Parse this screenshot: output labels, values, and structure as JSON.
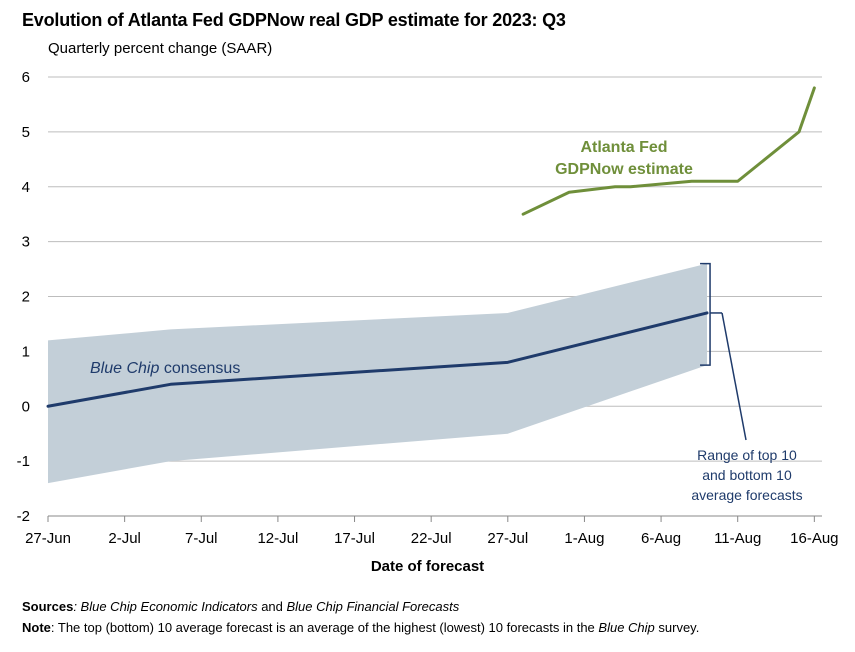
{
  "title": "Evolution of Atlanta Fed GDPNow real GDP estimate for 2023: Q3",
  "subtitle": "Quarterly percent change (SAAR)",
  "chart_data": {
    "type": "line",
    "title": "Evolution of Atlanta Fed GDPNow real GDP estimate for 2023: Q3",
    "ylabel": "Quarterly percent change (SAAR)",
    "xlabel": "Date of forecast",
    "ylim": [
      -2,
      6
    ],
    "yticks": [
      6,
      5,
      4,
      3,
      2,
      1,
      0,
      -1,
      -2
    ],
    "xticks": [
      "27-Jun",
      "2-Jul",
      "7-Jul",
      "12-Jul",
      "17-Jul",
      "22-Jul",
      "27-Jul",
      "1-Aug",
      "6-Aug",
      "11-Aug",
      "16-Aug"
    ],
    "grid": "horizontal",
    "series": [
      {
        "name": "Atlanta Fed GDPNow estimate",
        "color": "#6f8f3a",
        "points": [
          {
            "x": "28-Jul",
            "y": 3.5
          },
          {
            "x": "31-Jul",
            "y": 3.9
          },
          {
            "x": "3-Aug",
            "y": 4.0
          },
          {
            "x": "4-Aug",
            "y": 4.0
          },
          {
            "x": "8-Aug",
            "y": 4.1
          },
          {
            "x": "11-Aug",
            "y": 4.1
          },
          {
            "x": "15-Aug",
            "y": 5.0
          },
          {
            "x": "16-Aug",
            "y": 5.8
          }
        ]
      },
      {
        "name": "Blue Chip consensus",
        "color": "#1f3b6b",
        "points": [
          {
            "x": "27-Jun",
            "y": 0.0
          },
          {
            "x": "5-Jul",
            "y": 0.4
          },
          {
            "x": "27-Jul",
            "y": 0.8
          },
          {
            "x": "9-Aug",
            "y": 1.7
          }
        ]
      },
      {
        "name": "Range of top 10 and bottom 10 average forecasts",
        "type": "area",
        "color": "#c3cfd8",
        "points": [
          {
            "x": "27-Jun",
            "low": -1.4,
            "high": 1.2
          },
          {
            "x": "5-Jul",
            "low": -1.0,
            "high": 1.4
          },
          {
            "x": "27-Jul",
            "low": -0.5,
            "high": 1.7
          },
          {
            "x": "9-Aug",
            "low": 0.75,
            "high": 2.6
          }
        ]
      }
    ],
    "annotations": {
      "gdpnow_line1": "Atlanta Fed",
      "gdpnow_line2": "GDPNow estimate",
      "bluechip_italic": "Blue Chip",
      "bluechip_rest": " consensus",
      "range_line1": "Range of top 10",
      "range_line2": "and bottom 10",
      "range_line3": "average forecasts"
    }
  },
  "footer": {
    "sources_label": "Sources",
    "sources_sep": ": ",
    "source1": "Blue Chip Economic Indicators",
    "source_and": " and ",
    "source2": "Blue Chip Financial Forecasts",
    "note_label": "Note",
    "note_text1": ": The top (bottom) 10 average forecast is an average of the highest (lowest) 10 forecasts in the ",
    "note_italic": "Blue Chip",
    "note_text2": " survey."
  }
}
